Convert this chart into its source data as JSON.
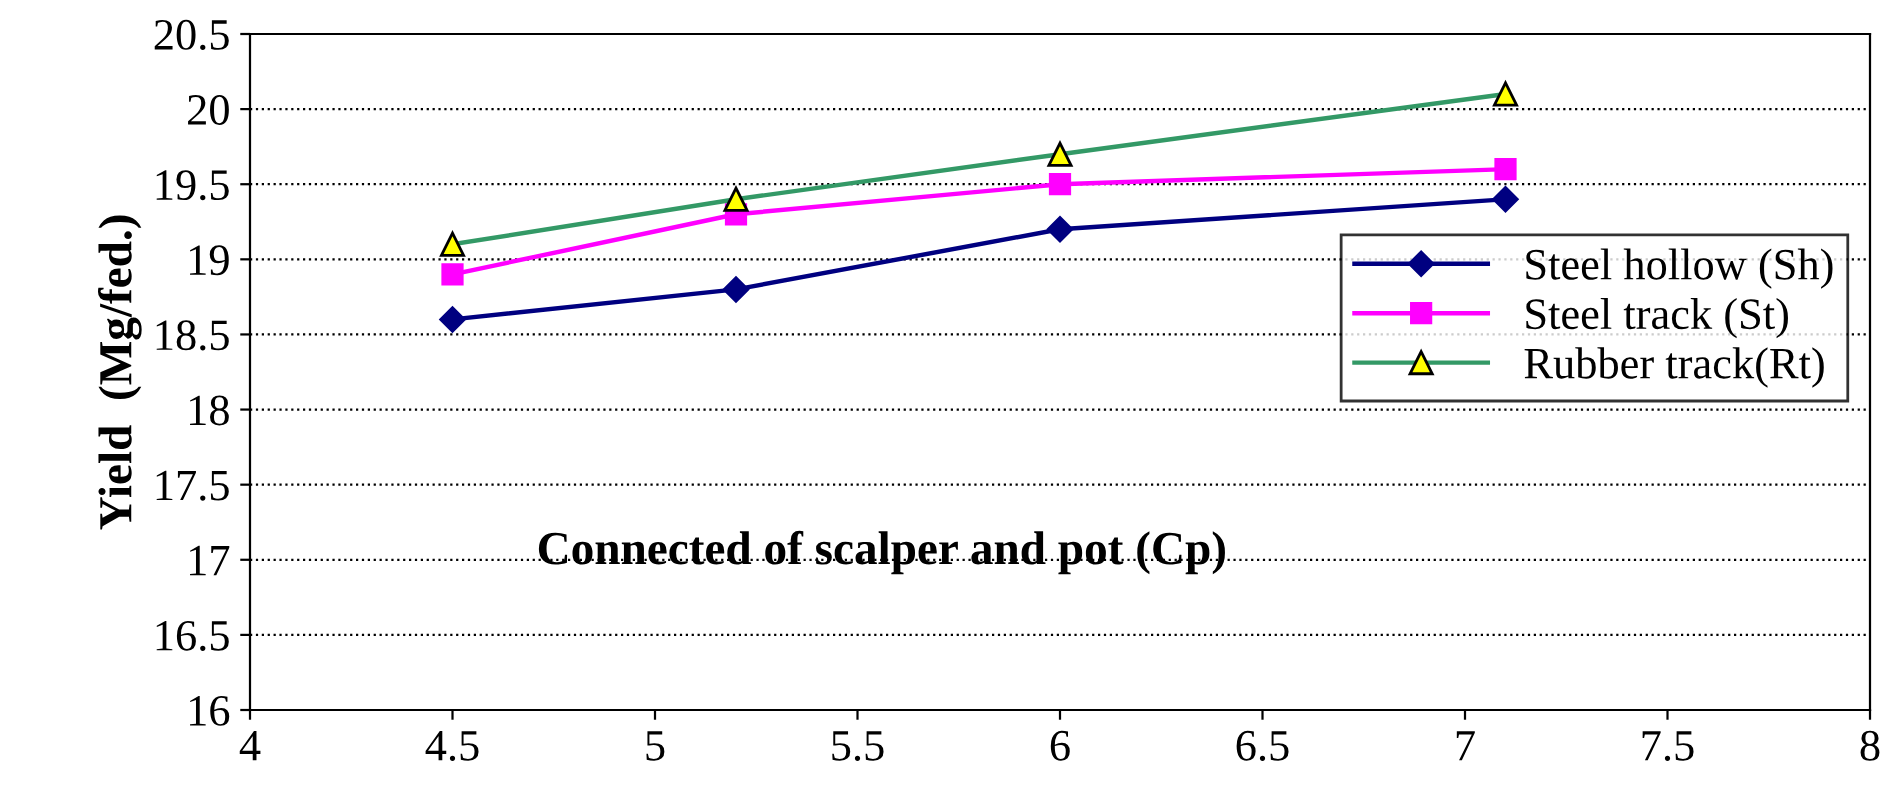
{
  "chart_data": {
    "type": "line",
    "xlabel": "Connected of scalper and pot (Cp)",
    "ylabel": "Yield  (Mg/fed.)",
    "xlim": [
      4,
      8
    ],
    "xticks": [
      4,
      4.5,
      5,
      5.5,
      6,
      6.5,
      7,
      7.5,
      8
    ],
    "ylim": [
      16,
      20.5
    ],
    "yticks": [
      16,
      16.5,
      17,
      17.5,
      18,
      18.5,
      19,
      19.5,
      20,
      20.5
    ],
    "grid": "y",
    "legend": "right",
    "line_style": "solid",
    "series": [
      {
        "name": "Steel hollow (Sh)",
        "color": "#000080",
        "marker": "diamond",
        "x": [
          4.5,
          5.2,
          6,
          7.1
        ],
        "values": [
          18.6,
          18.8,
          19.2,
          19.4
        ]
      },
      {
        "name": "Steel track (St)",
        "color": "#ff00ff",
        "marker": "square",
        "x": [
          4.5,
          5.2,
          6,
          7.1
        ],
        "values": [
          18.9,
          19.3,
          19.5,
          19.6
        ]
      },
      {
        "name": "Rubber track(Rt)",
        "color": "#339966",
        "marker": "triangle",
        "x": [
          4.5,
          5.2,
          6,
          7.1
        ],
        "values": [
          19.1,
          19.4,
          19.7,
          20.1
        ]
      }
    ]
  }
}
